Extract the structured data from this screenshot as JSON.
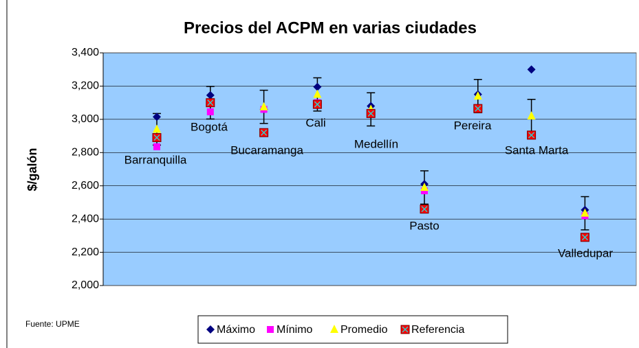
{
  "chart_data": {
    "type": "scatter",
    "title": "Precios del ACPM en varias ciudades",
    "y_label": "$/galón",
    "source": "Fuente: UPME",
    "categories": [
      "Barranquilla",
      "Bogotá",
      "Bucaramanga",
      "Cali",
      "Medellín",
      "Pasto",
      "Pereira",
      "Santa Marta",
      "Valledupar"
    ],
    "series": [
      {
        "name": "Máximo",
        "color": "#000080",
        "marker": "diamond",
        "values": [
          3015,
          3145,
          3060,
          3195,
          3080,
          2610,
          3150,
          3300,
          2455
        ]
      },
      {
        "name": "Mínimo",
        "color": "#FF00FF",
        "marker": "square",
        "values": [
          2835,
          3045,
          3060,
          3100,
          3040,
          2570,
          3070,
          2910,
          2420
        ]
      },
      {
        "name": "Promedio",
        "color": "#FFFF00",
        "marker": "triangle",
        "values": [
          2940,
          3100,
          3075,
          3150,
          3060,
          2590,
          3140,
          3020,
          2435
        ],
        "error": [
          95,
          98,
          100,
          100,
          100,
          100,
          100,
          100,
          100
        ]
      },
      {
        "name": "Referencia",
        "color": "#FF0000",
        "marker": "xsquare",
        "values": [
          2890,
          3100,
          2920,
          3090,
          3035,
          2460,
          3065,
          2905,
          2290
        ]
      }
    ],
    "ylim": [
      2000,
      3400
    ],
    "yticks": [
      {
        "value": 2000,
        "label": "2,000"
      },
      {
        "value": 2200,
        "label": "2,200"
      },
      {
        "value": 2400,
        "label": "2,400"
      },
      {
        "value": 2600,
        "label": "2,600"
      },
      {
        "value": 2800,
        "label": "2,800"
      },
      {
        "value": 3000,
        "label": "3,000"
      },
      {
        "value": 3200,
        "label": "3,200"
      },
      {
        "value": 3400,
        "label": "3,400"
      }
    ],
    "grid": true
  }
}
